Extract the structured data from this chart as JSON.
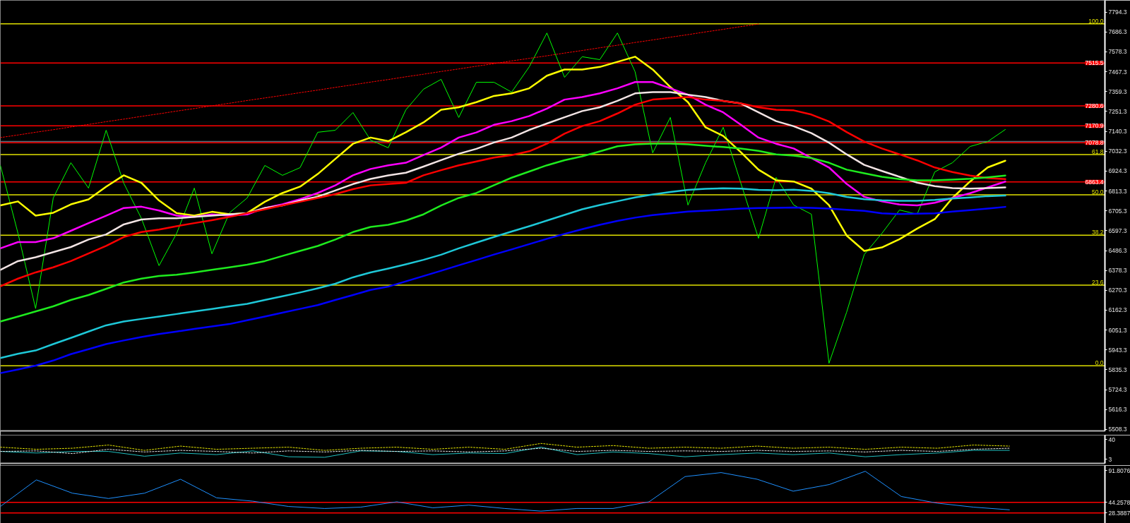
{
  "chart_data": [
    {
      "type": "line",
      "categories": [
        null,
        null,
        null,
        null,
        null,
        null,
        null,
        null,
        null,
        null,
        null,
        null,
        null,
        null,
        null,
        null,
        null,
        null,
        null,
        null,
        null,
        null,
        null,
        null,
        null,
        null,
        null,
        null,
        null,
        null,
        null,
        null,
        null,
        null,
        null,
        null,
        null,
        null,
        null,
        null,
        null,
        null,
        null,
        null,
        null,
        null,
        null,
        null,
        null,
        null,
        null,
        null,
        null,
        null,
        null,
        null,
        null,
        null,
        null,
        null,
        null,
        null,
        null
      ],
      "series": [
        {
          "color": "#00ff00",
          "values": [
            6955,
            6582,
            6170,
            6776,
            6969,
            6830,
            7147,
            6857,
            6664,
            6405,
            6582,
            6830,
            6470,
            6695,
            6776,
            6954,
            6900,
            6942,
            7136,
            7147,
            7244,
            7093,
            7051,
            7259,
            7372,
            7426,
            7217,
            7410,
            7410,
            7356,
            7495,
            7680,
            7437,
            7550,
            7534,
            7680,
            7468,
            7023,
            7217,
            6737,
            6969,
            7163,
            6857,
            6555,
            6888,
            6737,
            6687,
            5870,
            6150,
            6466,
            6582,
            6710,
            6687,
            6919,
            6969,
            7058,
            7085,
            7151,
            null,
            null,
            null,
            null,
            null
          ]
        },
        {
          "color": "#ffff00",
          "values": [
            6735,
            6757,
            6679,
            6695,
            6741,
            6768,
            6838,
            6900,
            6859,
            6762,
            6693,
            6679,
            6700,
            6687,
            6693,
            6755,
            6803,
            6838,
            6907,
            6990,
            7073,
            7107,
            7087,
            7136,
            7190,
            7259,
            7273,
            7301,
            7335,
            7349,
            7377,
            7446,
            7480,
            7480,
            7494,
            7522,
            7550,
            7480,
            7384,
            7301,
            7163,
            7116,
            7027,
            6931,
            6873,
            6866,
            6827,
            6737,
            6570,
            6486,
            6505,
            6550,
            6608,
            6660,
            6776,
            6866,
            6943,
            6980,
            null,
            null,
            null,
            null,
            null
          ]
        },
        {
          "color": "#ff00ff",
          "values": [
            6500,
            6534,
            6534,
            6555,
            6596,
            6638,
            6679,
            6721,
            6728,
            6707,
            6679,
            6672,
            6686,
            6679,
            6686,
            6721,
            6741,
            6769,
            6803,
            6845,
            6900,
            6935,
            6955,
            6969,
            7011,
            7052,
            7107,
            7135,
            7177,
            7197,
            7225,
            7266,
            7315,
            7329,
            7349,
            7377,
            7411,
            7411,
            7377,
            7342,
            7287,
            7245,
            7177,
            7107,
            7073,
            7047,
            6995,
            6943,
            6853,
            6782,
            6757,
            6740,
            6735,
            6750,
            6776,
            6802,
            6834,
            6866,
            null,
            null,
            null,
            null,
            null
          ]
        },
        {
          "color": "#f2e4e4",
          "values": [
            6382,
            6430,
            6451,
            6479,
            6507,
            6548,
            6576,
            6631,
            6658,
            6665,
            6665,
            6672,
            6679,
            6686,
            6693,
            6721,
            6735,
            6762,
            6783,
            6817,
            6852,
            6880,
            6900,
            6914,
            6948,
            6983,
            7018,
            7045,
            7080,
            7107,
            7149,
            7184,
            7218,
            7252,
            7273,
            7308,
            7349,
            7356,
            7356,
            7342,
            7329,
            7308,
            7294,
            7245,
            7197,
            7169,
            7131,
            7079,
            7015,
            6957,
            6924,
            6892,
            6860,
            6841,
            6830,
            6827,
            6830,
            6834,
            null,
            null,
            null,
            null,
            null
          ]
        },
        {
          "color": "#ff0000",
          "values": [
            6292,
            6334,
            6368,
            6396,
            6430,
            6472,
            6513,
            6562,
            6589,
            6603,
            6621,
            6638,
            6654,
            6672,
            6693,
            6714,
            6735,
            6755,
            6776,
            6797,
            6824,
            6845,
            6852,
            6859,
            6900,
            6928,
            6955,
            6976,
            6997,
            7011,
            7032,
            7073,
            7128,
            7170,
            7197,
            7239,
            7287,
            7315,
            7322,
            7329,
            7315,
            7308,
            7294,
            7273,
            7259,
            7256,
            7233,
            7195,
            7137,
            7085,
            7047,
            7015,
            6982,
            6943,
            6918,
            6899,
            6885,
            6879,
            null,
            null,
            null,
            null,
            null
          ]
        },
        {
          "color": "#1eeb1e",
          "values": [
            6099,
            6126,
            6154,
            6182,
            6217,
            6244,
            6278,
            6313,
            6334,
            6348,
            6355,
            6368,
            6382,
            6396,
            6410,
            6430,
            6458,
            6486,
            6513,
            6548,
            6589,
            6617,
            6629,
            6652,
            6686,
            6735,
            6776,
            6803,
            6846,
            6887,
            6921,
            6955,
            6983,
            7004,
            7031,
            7059,
            7070,
            7074,
            7074,
            7070,
            7062,
            7055,
            7047,
            7034,
            7015,
            7008,
            6995,
            6969,
            6931,
            6911,
            6892,
            6879,
            6873,
            6873,
            6876,
            6881,
            6889,
            6899,
            null,
            null,
            null,
            null,
            null
          ]
        },
        {
          "color": "#1ec8d8",
          "values": [
            5899,
            5922,
            5940,
            5975,
            6009,
            6044,
            6078,
            6099,
            6113,
            6126,
            6140,
            6154,
            6168,
            6182,
            6196,
            6217,
            6237,
            6258,
            6281,
            6306,
            6341,
            6368,
            6389,
            6412,
            6437,
            6465,
            6500,
            6531,
            6562,
            6592,
            6621,
            6652,
            6683,
            6714,
            6737,
            6758,
            6779,
            6795,
            6809,
            6820,
            6826,
            6829,
            6827,
            6820,
            6818,
            6821,
            6815,
            6802,
            6782,
            6769,
            6763,
            6760,
            6760,
            6765,
            6773,
            6779,
            6786,
            6789,
            null,
            null,
            null,
            null,
            null
          ]
        },
        {
          "color": "#0000ff",
          "values": [
            5816,
            5836,
            5857,
            5885,
            5920,
            5947,
            5975,
            5995,
            6014,
            6030,
            6044,
            6058,
            6072,
            6085,
            6106,
            6126,
            6147,
            6168,
            6189,
            6217,
            6244,
            6272,
            6290,
            6319,
            6348,
            6377,
            6407,
            6436,
            6466,
            6494,
            6523,
            6552,
            6579,
            6605,
            6629,
            6650,
            6668,
            6682,
            6692,
            6701,
            6706,
            6712,
            6718,
            6721,
            6722,
            6724,
            6722,
            6718,
            6711,
            6705,
            6692,
            6688,
            6690,
            6692,
            6701,
            6709,
            6718,
            6727,
            null,
            null,
            null,
            null,
            null
          ]
        },
        {
          "color": "#ff0000",
          "line_style": "dotted",
          "values": [
            7107,
            7121,
            7136,
            7150,
            7165,
            7179,
            7194,
            7208,
            7223,
            7237,
            7252,
            7266,
            7281,
            7295,
            7310,
            7324,
            7338,
            7353,
            7367,
            7382,
            7396,
            7411,
            7425,
            7440,
            7454,
            7469,
            7483,
            7498,
            7512,
            7527,
            7541,
            7555,
            7570,
            7584,
            7599,
            7613,
            7628,
            7642,
            7657,
            7671,
            7686,
            7700,
            7715,
            7729,
            null,
            null,
            null,
            null,
            null,
            null,
            null,
            null,
            null,
            null,
            null,
            null,
            null,
            null,
            null,
            null,
            null,
            null,
            null
          ]
        }
      ],
      "ylim": [
        5499.4,
        7858.9
      ],
      "yticks": [
        7794.3,
        7686.3,
        7578.3,
        7467.3,
        7359.3,
        7251.3,
        7140.3,
        7032.3,
        6924.3,
        6813.3,
        6705.3,
        6597.3,
        6486.3,
        6378.3,
        6270.3,
        6162.3,
        6051.3,
        5943.3,
        5835.3,
        5724.3,
        5616.3,
        5508.3
      ],
      "y2lim": [
        -19.03,
        106.88
      ],
      "ref_lines": [
        {
          "axis": "y2",
          "value": 100.0,
          "label": "100.0",
          "color": "#e0e000"
        },
        {
          "axis": "y2",
          "value": 61.8,
          "label": "61.8",
          "color": "#e0e000"
        },
        {
          "axis": "y2",
          "value": 50.0,
          "label": "50.0",
          "color": "#e0e000"
        },
        {
          "axis": "y2",
          "value": 38.2,
          "label": "38.2",
          "color": "#e0e000"
        },
        {
          "axis": "y2",
          "value": 23.6,
          "label": "23.6",
          "color": "#e0e000"
        },
        {
          "axis": "y2",
          "value": 0.0,
          "label": "0.0",
          "color": "#e0e000"
        },
        {
          "axis": "y",
          "value": 7085,
          "color": "#5f7080"
        },
        {
          "axis": "y",
          "value": 7515.5,
          "label": "7515.5",
          "color": "#ff0000"
        },
        {
          "axis": "y",
          "value": 7280.6,
          "label": "7280.6",
          "color": "#ff0000"
        },
        {
          "axis": "y",
          "value": 7170.9,
          "label": "7170.9",
          "color": "#ff0000"
        },
        {
          "axis": "y",
          "value": 7078.8,
          "label": "7078.8",
          "color": "#ff0000"
        },
        {
          "axis": "y",
          "value": 6863.4,
          "label": "6863.4",
          "color": "#ff0000"
        }
      ],
      "tick_labels": "y"
    },
    {
      "type": "line",
      "categories": [
        null,
        null,
        null,
        null,
        null,
        null,
        null,
        null,
        null,
        null,
        null,
        null,
        null,
        null,
        null,
        null,
        null,
        null,
        null,
        null,
        null,
        null,
        null,
        null,
        null,
        null,
        null,
        null,
        null,
        null,
        null
      ],
      "series": [
        {
          "color": "#20c0c0",
          "values": [
            18,
            15,
            18,
            18,
            9,
            15,
            12,
            19,
            8,
            7,
            19,
            18,
            12,
            15,
            14,
            26,
            12,
            17,
            14,
            8,
            12,
            15,
            12,
            15,
            8,
            12,
            15,
            20,
            20,
            null,
            null
          ]
        },
        {
          "color": "#e6e600",
          "line_style": "dotted",
          "values": [
            26,
            22,
            24,
            30,
            20,
            28,
            22,
            24,
            26,
            20,
            24,
            26,
            22,
            26,
            22,
            33,
            26,
            29,
            24,
            26,
            24,
            28,
            24,
            26,
            22,
            26,
            24,
            30,
            28,
            null,
            null
          ]
        },
        {
          "color": "#e8e8e8",
          "line_style": "dotted",
          "values": [
            18,
            19,
            14,
            22,
            17,
            20,
            18,
            15,
            19,
            17,
            20,
            18,
            19,
            17,
            19,
            24,
            18,
            20,
            18,
            19,
            18,
            20,
            18,
            19,
            17,
            20,
            18,
            22,
            24,
            null,
            null
          ]
        }
      ],
      "ylim": [
        -4.4,
        48.6
      ],
      "yticks": [
        40,
        3
      ],
      "tick_labels": "y"
    },
    {
      "type": "line",
      "categories": [
        null,
        null,
        null,
        null,
        null,
        null,
        null,
        null,
        null,
        null,
        null,
        null,
        null,
        null,
        null,
        null,
        null,
        null,
        null,
        null,
        null,
        null,
        null,
        null,
        null,
        null,
        null,
        null,
        null,
        null,
        null
      ],
      "series": [
        {
          "color": "#1e90ff",
          "values": [
            38,
            78,
            58,
            50,
            58,
            79,
            51,
            46,
            38,
            35,
            37,
            45,
            36,
            40,
            35,
            31,
            35,
            35,
            45,
            83,
            89,
            79,
            61,
            71,
            91,
            53,
            43,
            37,
            33,
            null,
            null
          ]
        }
      ],
      "ylim": [
        12.6,
        99.7
      ],
      "yticks": [
        91.8076,
        44.2578,
        28.3887
      ],
      "ref_lines": [
        {
          "axis": "y",
          "value": 44.2578,
          "color": "#ff0000"
        },
        {
          "axis": "y",
          "value": 28.3887,
          "color": "#ff0000"
        }
      ],
      "tick_labels": "y"
    }
  ]
}
